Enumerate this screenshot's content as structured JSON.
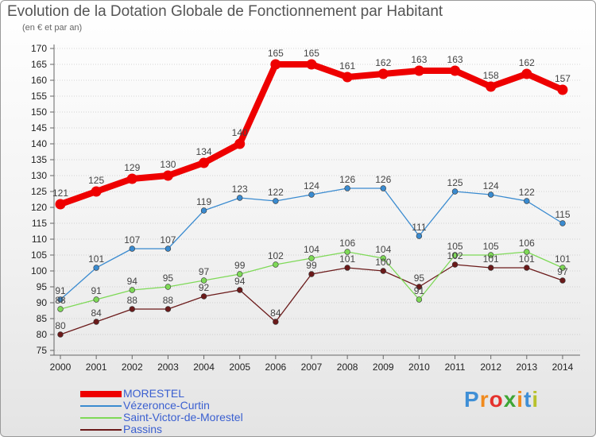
{
  "colors": {
    "axis": "#666666",
    "grid": "#b0b0b0",
    "tick_text": "#222222",
    "value_text": "#444444"
  },
  "logo": {
    "letters": [
      "P",
      "r",
      "o",
      "x",
      "i",
      "t",
      "i"
    ],
    "colors": [
      "#3f8fd6",
      "#f08a1d",
      "#e5322d",
      "#3fa535",
      "#f08a1d",
      "#3f8fd6",
      "#b7c12b"
    ]
  },
  "chart_data": {
    "type": "line",
    "title": "Evolution de la Dotation Globale de Fonctionnement par Habitant",
    "subtitle": "(en € et par an)",
    "xlabel": "",
    "ylabel": "",
    "categories": [
      "2000",
      "2001",
      "2002",
      "2003",
      "2004",
      "2005",
      "2006",
      "2007",
      "2008",
      "2009",
      "2010",
      "2011",
      "2012",
      "2013",
      "2014"
    ],
    "ylim": [
      75,
      170
    ],
    "yticks": [
      75,
      80,
      85,
      90,
      95,
      100,
      105,
      110,
      115,
      120,
      125,
      130,
      135,
      140,
      145,
      150,
      155,
      160,
      165,
      170
    ],
    "grid": "horizontal dotted",
    "legend_position": "bottom-left",
    "series": [
      {
        "name": "MORESTEL",
        "color": "#ee0000",
        "emphasis": true,
        "values": [
          121,
          125,
          129,
          130,
          134,
          140,
          165,
          165,
          161,
          162,
          163,
          163,
          158,
          162,
          157
        ]
      },
      {
        "name": "Vézeronce-Curtin",
        "color": "#3a8bd0",
        "emphasis": false,
        "values": [
          91,
          101,
          107,
          107,
          119,
          123,
          122,
          124,
          126,
          126,
          111,
          125,
          124,
          122,
          115
        ]
      },
      {
        "name": "Saint-Victor-de-Morestel",
        "color": "#7ed957",
        "emphasis": false,
        "values": [
          88,
          91,
          94,
          95,
          97,
          99,
          102,
          104,
          106,
          104,
          91,
          105,
          105,
          106,
          101
        ]
      },
      {
        "name": "Passins",
        "color": "#6b1a1a",
        "emphasis": false,
        "values": [
          80,
          84,
          88,
          88,
          92,
          94,
          84,
          99,
          101,
          100,
          95,
          102,
          101,
          101,
          97
        ]
      }
    ]
  }
}
